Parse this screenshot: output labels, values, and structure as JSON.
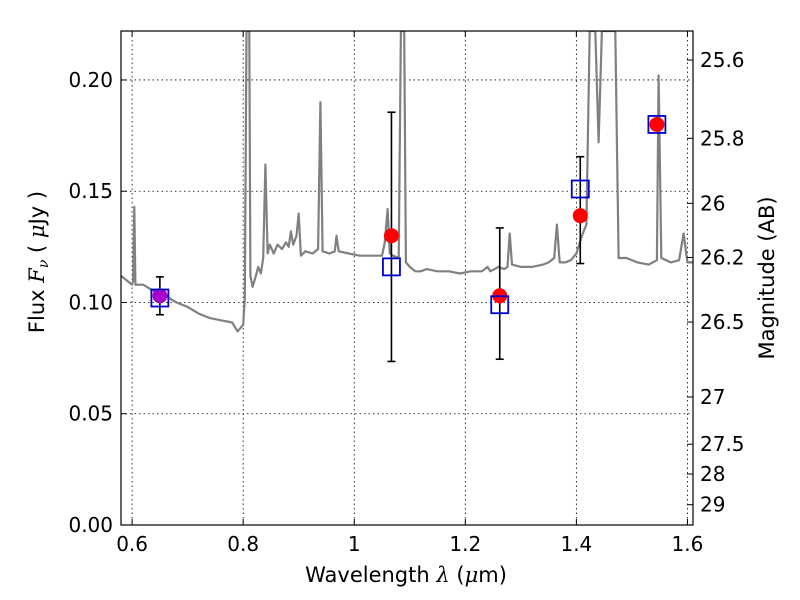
{
  "chart_data": {
    "type": "scatter",
    "xlabel": {
      "text": "Wavelength",
      "symbol": "λ",
      "unit_open": "(",
      "unit_mu": "μ",
      "unit_rest": "m)"
    },
    "ylabel": {
      "text": "Flux",
      "symbol": "F",
      "subscript": "ν",
      "unit_open": "(",
      "unit_mu": "μ",
      "unit_rest": "Jy",
      "unit_close": ")"
    },
    "y2label": "Magnitude (AB)",
    "xlim": [
      0.58,
      1.61
    ],
    "ylim": [
      0.0,
      0.222
    ],
    "grid": true,
    "x_ticks": [
      {
        "value": 0.6,
        "label": "0.6"
      },
      {
        "value": 0.8,
        "label": "0.8"
      },
      {
        "value": 1.0,
        "label": "1"
      },
      {
        "value": 1.2,
        "label": "1.2"
      },
      {
        "value": 1.4,
        "label": "1.4"
      },
      {
        "value": 1.6,
        "label": "1.6"
      }
    ],
    "y_ticks": [
      {
        "value": 0.0,
        "label": "0.00"
      },
      {
        "value": 0.05,
        "label": "0.05"
      },
      {
        "value": 0.1,
        "label": "0.10"
      },
      {
        "value": 0.15,
        "label": "0.15"
      },
      {
        "value": 0.2,
        "label": "0.20"
      }
    ],
    "y2_ticks": [
      {
        "value": 25.6,
        "label": "25.6"
      },
      {
        "value": 25.8,
        "label": "25.8"
      },
      {
        "value": 26.0,
        "label": "26"
      },
      {
        "value": 26.2,
        "label": "26.2"
      },
      {
        "value": 26.5,
        "label": "26.5"
      },
      {
        "value": 27.0,
        "label": "27"
      },
      {
        "value": 27.5,
        "label": "27.5"
      },
      {
        "value": 28.0,
        "label": "28"
      },
      {
        "value": 29.0,
        "label": "29"
      }
    ],
    "series": [
      {
        "kind": "line",
        "color": "#808080",
        "points": [
          [
            0.58,
            0.112
          ],
          [
            0.595,
            0.109
          ],
          [
            0.6,
            0.108
          ],
          [
            0.602,
            0.11
          ],
          [
            0.604,
            0.143
          ],
          [
            0.606,
            0.108
          ],
          [
            0.62,
            0.108
          ],
          [
            0.64,
            0.105
          ],
          [
            0.66,
            0.103
          ],
          [
            0.68,
            0.1
          ],
          [
            0.7,
            0.098
          ],
          [
            0.72,
            0.095
          ],
          [
            0.74,
            0.093
          ],
          [
            0.76,
            0.092
          ],
          [
            0.78,
            0.091
          ],
          [
            0.79,
            0.087
          ],
          [
            0.8,
            0.09
          ],
          [
            0.803,
            0.102
          ],
          [
            0.806,
            0.222
          ],
          [
            0.811,
            0.222
          ],
          [
            0.813,
            0.112
          ],
          [
            0.817,
            0.107
          ],
          [
            0.823,
            0.112
          ],
          [
            0.827,
            0.116
          ],
          [
            0.832,
            0.113
          ],
          [
            0.836,
            0.12
          ],
          [
            0.84,
            0.162
          ],
          [
            0.844,
            0.122
          ],
          [
            0.848,
            0.126
          ],
          [
            0.855,
            0.122
          ],
          [
            0.862,
            0.126
          ],
          [
            0.87,
            0.124
          ],
          [
            0.877,
            0.127
          ],
          [
            0.882,
            0.125
          ],
          [
            0.886,
            0.132
          ],
          [
            0.89,
            0.126
          ],
          [
            0.896,
            0.13
          ],
          [
            0.9,
            0.14
          ],
          [
            0.904,
            0.121
          ],
          [
            0.912,
            0.123
          ],
          [
            0.925,
            0.122
          ],
          [
            0.935,
            0.124
          ],
          [
            0.939,
            0.19
          ],
          [
            0.943,
            0.123
          ],
          [
            0.955,
            0.122
          ],
          [
            0.965,
            0.123
          ],
          [
            0.968,
            0.13
          ],
          [
            0.972,
            0.123
          ],
          [
            0.99,
            0.122
          ],
          [
            1.01,
            0.121
          ],
          [
            1.03,
            0.121
          ],
          [
            1.05,
            0.121
          ],
          [
            1.055,
            0.127
          ],
          [
            1.06,
            0.142
          ],
          [
            1.064,
            0.122
          ],
          [
            1.07,
            0.121
          ],
          [
            1.08,
            0.12
          ],
          [
            1.084,
            0.222
          ],
          [
            1.09,
            0.222
          ],
          [
            1.093,
            0.118
          ],
          [
            1.1,
            0.116
          ],
          [
            1.11,
            0.114
          ],
          [
            1.12,
            0.114
          ],
          [
            1.13,
            0.115
          ],
          [
            1.15,
            0.114
          ],
          [
            1.17,
            0.114
          ],
          [
            1.19,
            0.113
          ],
          [
            1.21,
            0.114
          ],
          [
            1.23,
            0.114
          ],
          [
            1.24,
            0.116
          ],
          [
            1.245,
            0.114
          ],
          [
            1.26,
            0.116
          ],
          [
            1.27,
            0.115
          ],
          [
            1.276,
            0.116
          ],
          [
            1.28,
            0.131
          ],
          [
            1.284,
            0.117
          ],
          [
            1.3,
            0.116
          ],
          [
            1.32,
            0.116
          ],
          [
            1.34,
            0.117
          ],
          [
            1.35,
            0.118
          ],
          [
            1.36,
            0.12
          ],
          [
            1.365,
            0.135
          ],
          [
            1.37,
            0.118
          ],
          [
            1.38,
            0.118
          ],
          [
            1.39,
            0.119
          ],
          [
            1.4,
            0.122
          ],
          [
            1.41,
            0.13
          ],
          [
            1.418,
            0.135
          ],
          [
            1.424,
            0.222
          ],
          [
            1.434,
            0.222
          ],
          [
            1.44,
            0.172
          ],
          [
            1.446,
            0.222
          ],
          [
            1.456,
            0.222
          ],
          [
            1.47,
            0.222
          ],
          [
            1.476,
            0.12
          ],
          [
            1.49,
            0.12
          ],
          [
            1.51,
            0.118
          ],
          [
            1.53,
            0.117
          ],
          [
            1.545,
            0.119
          ],
          [
            1.548,
            0.202
          ],
          [
            1.553,
            0.12
          ],
          [
            1.57,
            0.118
          ],
          [
            1.585,
            0.119
          ],
          [
            1.593,
            0.131
          ],
          [
            1.6,
            0.118
          ],
          [
            1.61,
            0.118
          ]
        ]
      },
      {
        "kind": "errorbar",
        "color": "#000000",
        "points": [
          {
            "x": 0.65,
            "y": 0.103,
            "ylo": 0.0945,
            "yhi": 0.1115
          },
          {
            "x": 1.067,
            "y": 0.129,
            "ylo": 0.0735,
            "yhi": 0.1855
          },
          {
            "x": 1.262,
            "y": 0.103,
            "ylo": 0.0745,
            "yhi": 0.1335
          },
          {
            "x": 1.407,
            "y": 0.139,
            "ylo": 0.1175,
            "yhi": 0.1655
          }
        ]
      },
      {
        "kind": "scatter",
        "marker": "circle",
        "points": [
          {
            "x": 0.65,
            "y": 0.103,
            "color": "#aa00cc"
          },
          {
            "x": 1.067,
            "y": 0.13,
            "color": "#ff0000"
          },
          {
            "x": 1.262,
            "y": 0.103,
            "color": "#ff0000"
          },
          {
            "x": 1.407,
            "y": 0.139,
            "color": "#ff0000"
          },
          {
            "x": 1.545,
            "y": 0.18,
            "color": "#ff0000"
          }
        ]
      },
      {
        "kind": "scatter",
        "marker": "square",
        "color": "#0000cc",
        "points": [
          {
            "x": 0.65,
            "y": 0.102
          },
          {
            "x": 1.067,
            "y": 0.116
          },
          {
            "x": 1.262,
            "y": 0.099
          },
          {
            "x": 1.407,
            "y": 0.151
          },
          {
            "x": 1.545,
            "y": 0.18
          }
        ]
      }
    ]
  }
}
